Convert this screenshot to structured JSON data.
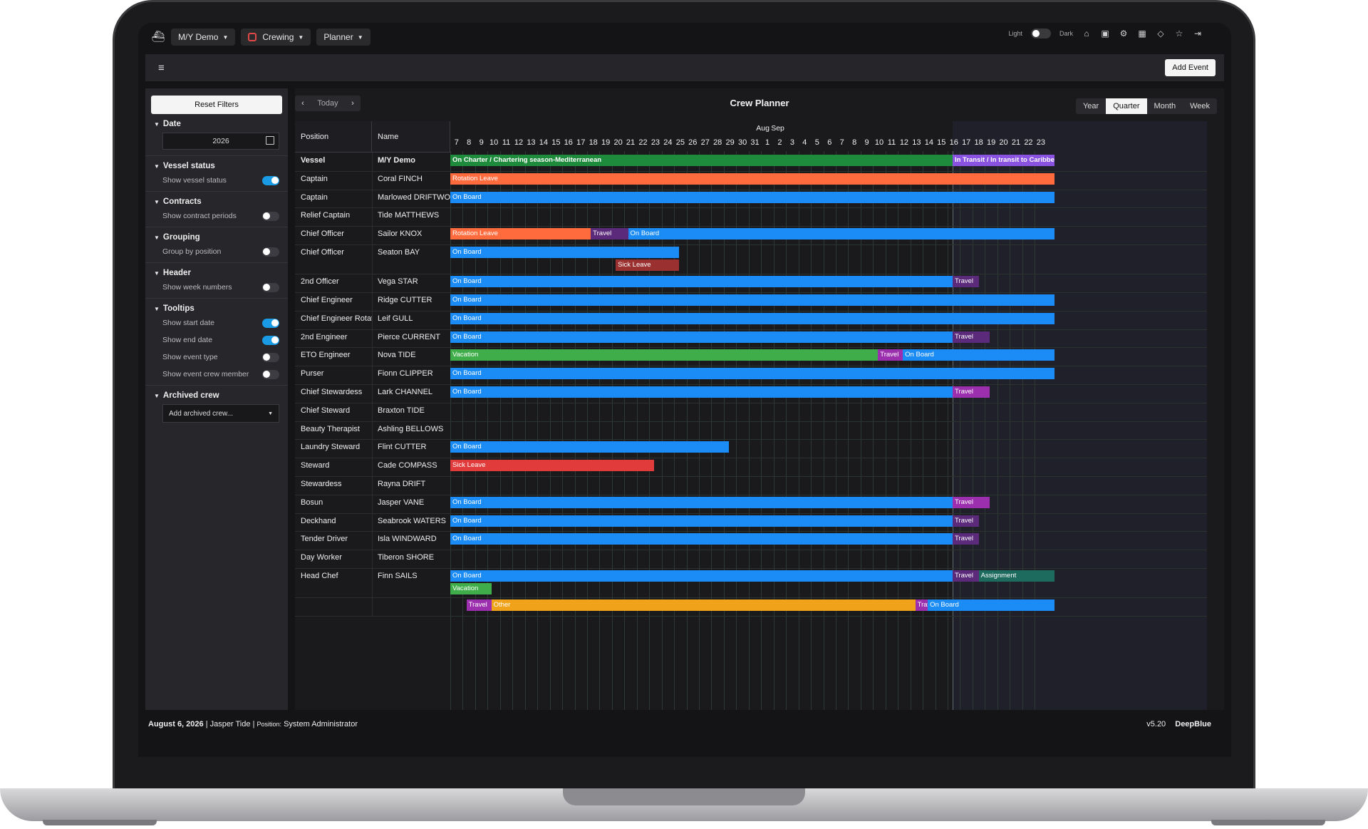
{
  "topbar": {
    "vessel_label": "M/Y Demo",
    "module_label": "Crewing",
    "view_label": "Planner",
    "theme_light": "Light",
    "theme_dark": "Dark"
  },
  "toolbar": {
    "add_event_label": "Add Event"
  },
  "sidebar": {
    "reset_label": "Reset Filters",
    "date_title": "Date",
    "date_value": "2026",
    "vessel_status_title": "Vessel status",
    "vessel_status_row": "Show vessel status",
    "contracts_title": "Contracts",
    "contracts_row": "Show contract periods",
    "grouping_title": "Grouping",
    "grouping_row": "Group by position",
    "header_title": "Header",
    "header_row": "Show week numbers",
    "tooltips_title": "Tooltips",
    "tooltips_start": "Show start date",
    "tooltips_end": "Show end date",
    "tooltips_type": "Show event type",
    "tooltips_member": "Show event crew member",
    "archived_title": "Archived crew",
    "archived_select": "Add archived crew..."
  },
  "planner": {
    "title": "Crew Planner",
    "today_label": "Today",
    "views": [
      "Year",
      "Quarter",
      "Month",
      "Week"
    ],
    "active_view": "Quarter",
    "col_position": "Position",
    "col_name": "Name",
    "months": [
      {
        "label": "Aug"
      },
      {
        "label": "Sep"
      }
    ],
    "days": [
      "7",
      "8",
      "9",
      "10",
      "11",
      "12",
      "13",
      "14",
      "15",
      "16",
      "17",
      "18",
      "19",
      "20",
      "21",
      "22",
      "23",
      "24",
      "25",
      "26",
      "27",
      "28",
      "29",
      "30",
      "31",
      "1",
      "2",
      "3",
      "4",
      "5",
      "6",
      "7",
      "8",
      "9",
      "10",
      "11",
      "12",
      "13",
      "14",
      "15",
      "16",
      "17",
      "18",
      "19",
      "20",
      "21",
      "22",
      "23"
    ]
  },
  "crew_rows": [
    {
      "position": "Vessel",
      "name": "M/Y Demo",
      "vessel": true,
      "tall": false,
      "events": [
        {
          "label": "On Charter / Chartering season-Mediterranean",
          "start": 0,
          "end": 40.4,
          "color": "#1e8a3c",
          "lane": 0,
          "bold": true
        },
        {
          "label": "In Transit / In transit to Caribbean",
          "start": 40.4,
          "end": 48.6,
          "color": "#8a52e0",
          "lane": 0,
          "bold": true
        }
      ]
    },
    {
      "position": "Captain",
      "name": "Coral FINCH",
      "events": [
        {
          "label": "Rotation Leave",
          "start": 0,
          "end": 48.6,
          "color": "#ff6b3d",
          "lane": 0
        }
      ]
    },
    {
      "position": "Captain",
      "name": "Marlowed DRIFTWOOD",
      "events": [
        {
          "label": "On Board",
          "start": 0,
          "end": 48.6,
          "color": "#1b8cf5",
          "lane": 0
        }
      ]
    },
    {
      "position": "Relief Captain",
      "name": "Tide MATTHEWS",
      "events": []
    },
    {
      "position": "Chief Officer",
      "name": "Sailor KNOX",
      "events": [
        {
          "label": "Rotation Leave",
          "start": 0,
          "end": 11.3,
          "color": "#ff6b3d",
          "lane": 0
        },
        {
          "label": "Travel",
          "start": 11.3,
          "end": 14.3,
          "color": "#5b2a7a",
          "lane": 0
        },
        {
          "label": "On Board",
          "start": 14.3,
          "end": 48.6,
          "color": "#1b8cf5",
          "lane": 0
        }
      ]
    },
    {
      "position": "Chief Officer",
      "name": "Seaton BAY",
      "tall": true,
      "events": [
        {
          "label": "On Board",
          "start": 0,
          "end": 18.4,
          "color": "#1b8cf5",
          "lane": 0
        },
        {
          "label": "Sick Leave",
          "start": 13.3,
          "end": 18.4,
          "color": "#9b3030",
          "lane": 1
        }
      ]
    },
    {
      "position": "2nd Officer",
      "name": "Vega STAR",
      "events": [
        {
          "label": "On Board",
          "start": 0,
          "end": 40.4,
          "color": "#1b8cf5",
          "lane": 0
        },
        {
          "label": "Travel",
          "start": 40.4,
          "end": 42.5,
          "color": "#5b2a7a",
          "lane": 0
        }
      ]
    },
    {
      "position": "Chief Engineer",
      "name": "Ridge CUTTER",
      "events": [
        {
          "label": "On Board",
          "start": 0,
          "end": 48.6,
          "color": "#1b8cf5",
          "lane": 0
        }
      ]
    },
    {
      "position": "Chief Engineer Rotation",
      "name": "Leif GULL",
      "events": [
        {
          "label": "On Board",
          "start": 0,
          "end": 48.6,
          "color": "#1b8cf5",
          "lane": 0
        }
      ]
    },
    {
      "position": "2nd Engineer",
      "name": "Pierce CURRENT",
      "events": [
        {
          "label": "On Board",
          "start": 0,
          "end": 40.4,
          "color": "#1b8cf5",
          "lane": 0
        },
        {
          "label": "Travel",
          "start": 40.4,
          "end": 43.4,
          "color": "#5b2a7a",
          "lane": 0
        }
      ]
    },
    {
      "position": "ETO Engineer",
      "name": "Nova TIDE",
      "events": [
        {
          "label": "Vacation",
          "start": 0,
          "end": 34.4,
          "color": "#3fae4a",
          "lane": 0
        },
        {
          "label": "Travel",
          "start": 34.4,
          "end": 36.4,
          "color": "#9b2fae",
          "lane": 0
        },
        {
          "label": "On Board",
          "start": 36.4,
          "end": 48.6,
          "color": "#1b8cf5",
          "lane": 0
        }
      ]
    },
    {
      "position": "Purser",
      "name": "Fionn CLIPPER",
      "events": [
        {
          "label": "On Board",
          "start": 0,
          "end": 48.6,
          "color": "#1b8cf5",
          "lane": 0
        }
      ]
    },
    {
      "position": "Chief Stewardess",
      "name": "Lark CHANNEL",
      "events": [
        {
          "label": "On Board",
          "start": 0,
          "end": 40.4,
          "color": "#1b8cf5",
          "lane": 0
        },
        {
          "label": "Travel",
          "start": 40.4,
          "end": 43.4,
          "color": "#9b2fae",
          "lane": 0
        }
      ]
    },
    {
      "position": "Chief Steward",
      "name": "Braxton TIDE",
      "events": []
    },
    {
      "position": "Beauty Therapist",
      "name": "Ashling BELLOWS",
      "events": []
    },
    {
      "position": "Laundry Steward",
      "name": "Flint CUTTER",
      "events": [
        {
          "label": "On Board",
          "start": 0,
          "end": 22.4,
          "color": "#1b8cf5",
          "lane": 0
        }
      ]
    },
    {
      "position": "Steward",
      "name": "Cade COMPASS",
      "events": [
        {
          "label": "Sick Leave",
          "start": 0,
          "end": 16.4,
          "color": "#e23b3b",
          "lane": 0
        }
      ]
    },
    {
      "position": "Stewardess",
      "name": "Rayna DRIFT",
      "events": []
    },
    {
      "position": "Bosun",
      "name": "Jasper VANE",
      "events": [
        {
          "label": "On Board",
          "start": 0,
          "end": 40.4,
          "color": "#1b8cf5",
          "lane": 0
        },
        {
          "label": "Travel",
          "start": 40.4,
          "end": 43.4,
          "color": "#9b2fae",
          "lane": 0
        }
      ]
    },
    {
      "position": "Deckhand",
      "name": "Seabrook WATERS",
      "events": [
        {
          "label": "On Board",
          "start": 0,
          "end": 40.4,
          "color": "#1b8cf5",
          "lane": 0
        },
        {
          "label": "Travel",
          "start": 40.4,
          "end": 42.5,
          "color": "#5b2a7a",
          "lane": 0
        }
      ]
    },
    {
      "position": "Tender Driver",
      "name": "Isla WINDWARD",
      "events": [
        {
          "label": "On Board",
          "start": 0,
          "end": 40.4,
          "color": "#1b8cf5",
          "lane": 0
        },
        {
          "label": "Travel",
          "start": 40.4,
          "end": 42.5,
          "color": "#5b2a7a",
          "lane": 0
        }
      ]
    },
    {
      "position": "Day Worker",
      "name": "Tiberon SHORE",
      "events": []
    },
    {
      "position": "Head Chef",
      "name": "Finn SAILS",
      "tall": true,
      "events": [
        {
          "label": "On Board",
          "start": 0,
          "end": 40.4,
          "color": "#1b8cf5",
          "lane": 0
        },
        {
          "label": "Travel",
          "start": 40.4,
          "end": 42.5,
          "color": "#5b2a7a",
          "lane": 0
        },
        {
          "label": "Assignment",
          "start": 42.5,
          "end": 48.6,
          "color": "#1d6b5e",
          "lane": 0
        },
        {
          "label": "Vacation",
          "start": 0,
          "end": 3.3,
          "color": "#3fae4a",
          "lane": 1
        }
      ]
    },
    {
      "position": "",
      "name": "",
      "events": [
        {
          "label": "Travel",
          "start": 1.3,
          "end": 3.3,
          "color": "#9b2fae",
          "lane": 0
        },
        {
          "label": "Other",
          "start": 3.3,
          "end": 37.4,
          "color": "#f0a21a",
          "lane": 0
        },
        {
          "label": "Trav",
          "start": 37.4,
          "end": 38.4,
          "color": "#9b2fae",
          "lane": 0
        },
        {
          "label": "On Board",
          "start": 38.4,
          "end": 48.6,
          "color": "#1b8cf5",
          "lane": 0
        }
      ]
    }
  ],
  "footer": {
    "date": "August 6, 2026",
    "user": "Jasper Tide",
    "position_label": "Position:",
    "position_value": "System Administrator",
    "version": "v5.20",
    "brand": "DeepBlue"
  }
}
